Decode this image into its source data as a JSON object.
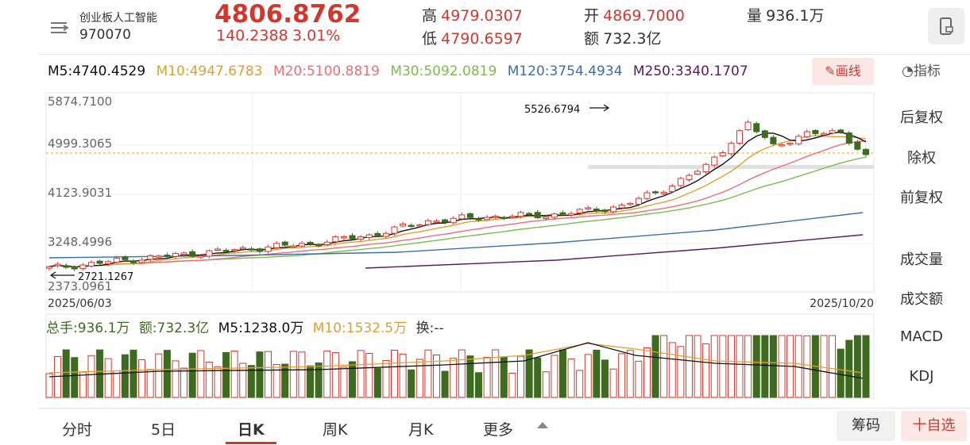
{
  "header": {
    "icon": "list-menu-icon",
    "name": "创业板人工智能",
    "code": "970070",
    "price": "4806.8762",
    "change": "140.2388",
    "change_pct": "3.01%",
    "high_label": "高",
    "high": "4979.0307",
    "low_label": "低",
    "low": "4790.6597",
    "open_label": "开",
    "open": "4869.7000",
    "amount_label": "额",
    "amount": "732.3亿",
    "volume_label": "量",
    "volume": "936.1万",
    "device_icon": "phone-rotate-icon"
  },
  "ma_bar": {
    "m5": "M5:4740.4529",
    "m10": "M10:4947.6783",
    "m20": "M20:5100.8819",
    "m30": "M30:5092.0819",
    "m120": "M120:3754.4934",
    "m250": "M250:3340.1707",
    "draw_btn": "画线",
    "draw_icon": "pencil-icon",
    "indicator": "指标",
    "indicator_icon": "gauge-icon"
  },
  "colors": {
    "up": "#d0382f",
    "down": "#3d6b1f",
    "m5": "#111111",
    "m10": "#e0a030",
    "m20": "#e8707a",
    "m30": "#7dbb4e",
    "m120": "#3a6fa8",
    "m250": "#5a1a5a"
  },
  "chart": {
    "y_ticks": [
      "5874.7100",
      "4999.3065",
      "4123.9031",
      "3248.4996",
      "2373.0961"
    ],
    "max_label": "5526.6794",
    "min_label": "2721.1267",
    "date_start": "2025/06/03",
    "date_end": "2025/10/20"
  },
  "volume_bar": {
    "total": "总手:936.1万",
    "amount": "额:732.3亿",
    "m5": "M5:1238.0万",
    "m10": "M10:1532.5万",
    "switch": "换:--"
  },
  "side_menu": [
    "后复权",
    "除权",
    "前复权",
    "成交量",
    "成交额",
    "MACD",
    "KDJ"
  ],
  "tabs": [
    "分时",
    "5日",
    "日K",
    "周K",
    "月K",
    "更多"
  ],
  "active_tab": "日K",
  "buttons": {
    "chips": "筹码",
    "watch": "十自选"
  }
}
